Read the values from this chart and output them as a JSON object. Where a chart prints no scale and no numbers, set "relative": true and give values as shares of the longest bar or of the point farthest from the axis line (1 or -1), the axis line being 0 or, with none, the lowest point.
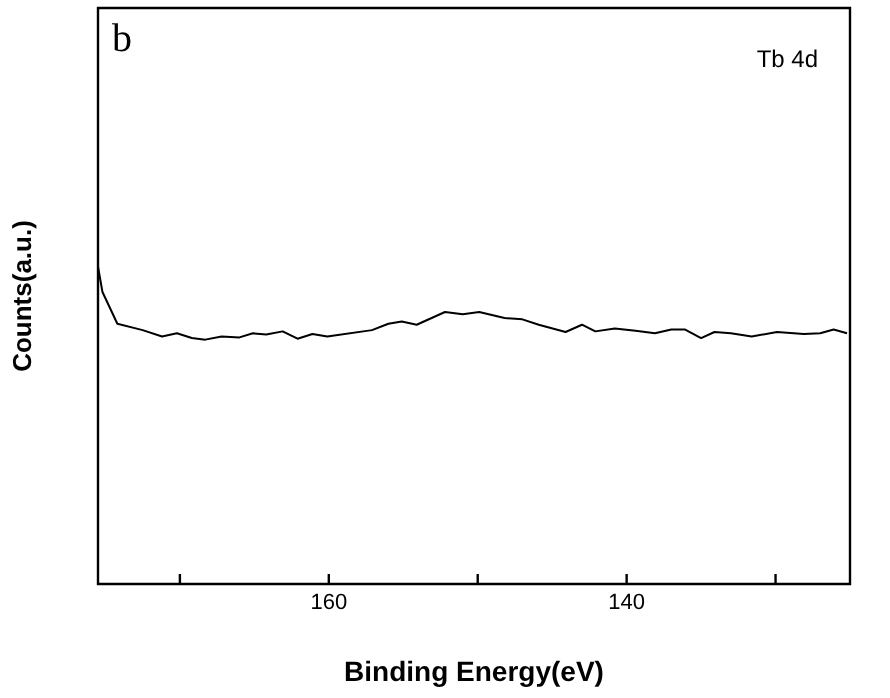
{
  "chart_data": {
    "type": "line",
    "xlabel": "Binding Energy(eV)",
    "ylabel": "Counts(a.u.)",
    "relative": true,
    "annotations": [
      "b",
      "Tb 4d"
    ],
    "xlim": [
      175.5,
      125
    ],
    "xticks": [
      {
        "value": 170,
        "label": null
      },
      160,
      {
        "value": 150,
        "label": null
      },
      140,
      {
        "value": 130,
        "label": null
      }
    ],
    "series": [
      {
        "color": "#000000",
        "x": [
          175.5,
          175.2,
          174.2,
          172.5,
          171.2,
          170.2,
          169.2,
          168.3,
          167.2,
          166.0,
          165.1,
          164.2,
          163.1,
          162.1,
          161.1,
          160.1,
          157.1,
          156.0,
          155.1,
          154.1,
          152.2,
          151.0,
          149.9,
          148.2,
          147.0,
          145.9,
          144.1,
          143.0,
          142.1,
          140.8,
          139.4,
          138.1,
          137.0,
          136.1,
          135.0,
          134.1,
          133.0,
          131.6,
          129.9,
          128.1,
          127.0,
          126.1,
          125.2
        ],
        "values": [
          1.0,
          0.92,
          0.82,
          0.8,
          0.78,
          0.79,
          0.775,
          0.77,
          0.78,
          0.777,
          0.79,
          0.786,
          0.796,
          0.773,
          0.788,
          0.78,
          0.8,
          0.82,
          0.827,
          0.817,
          0.857,
          0.85,
          0.857,
          0.838,
          0.834,
          0.817,
          0.794,
          0.817,
          0.796,
          0.805,
          0.798,
          0.79,
          0.802,
          0.802,
          0.775,
          0.794,
          0.79,
          0.78,
          0.794,
          0.788,
          0.79,
          0.802,
          0.79
        ]
      }
    ]
  }
}
